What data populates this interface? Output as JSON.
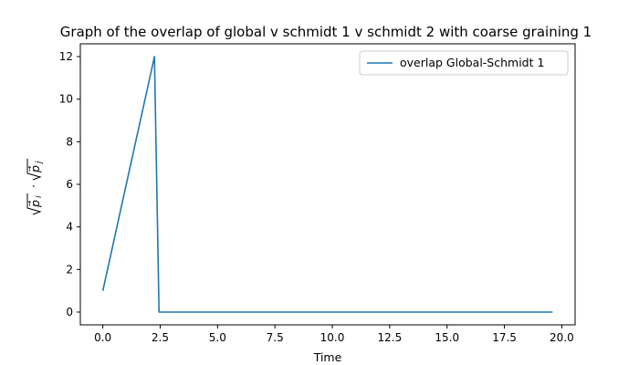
{
  "chart_data": {
    "type": "line",
    "title": "Graph of the overlap of global v schmidt 1 v schmidt 2 with coarse graining 1",
    "xlabel": "Time",
    "ylabel": "√pi · √pj",
    "xlim": [
      -0.98,
      20.58
    ],
    "ylim": [
      -0.6,
      12.6
    ],
    "xticks": [
      0.0,
      2.5,
      5.0,
      7.5,
      10.0,
      12.5,
      15.0,
      17.5,
      20.0
    ],
    "xtick_labels": [
      "0.0",
      "2.5",
      "5.0",
      "7.5",
      "10.0",
      "12.5",
      "15.0",
      "17.5",
      "20.0"
    ],
    "yticks": [
      0,
      2,
      4,
      6,
      8,
      10,
      12
    ],
    "ytick_labels": [
      "0",
      "2",
      "4",
      "6",
      "8",
      "10",
      "12"
    ],
    "grid": false,
    "legend_position": "top-right",
    "series": [
      {
        "name": "overlap Global-Schmidt 1",
        "color": "#1f77b4",
        "x": [
          0.0,
          2.25,
          2.45,
          19.6
        ],
        "y": [
          1.0,
          12.0,
          0.0,
          0.0
        ]
      }
    ]
  }
}
